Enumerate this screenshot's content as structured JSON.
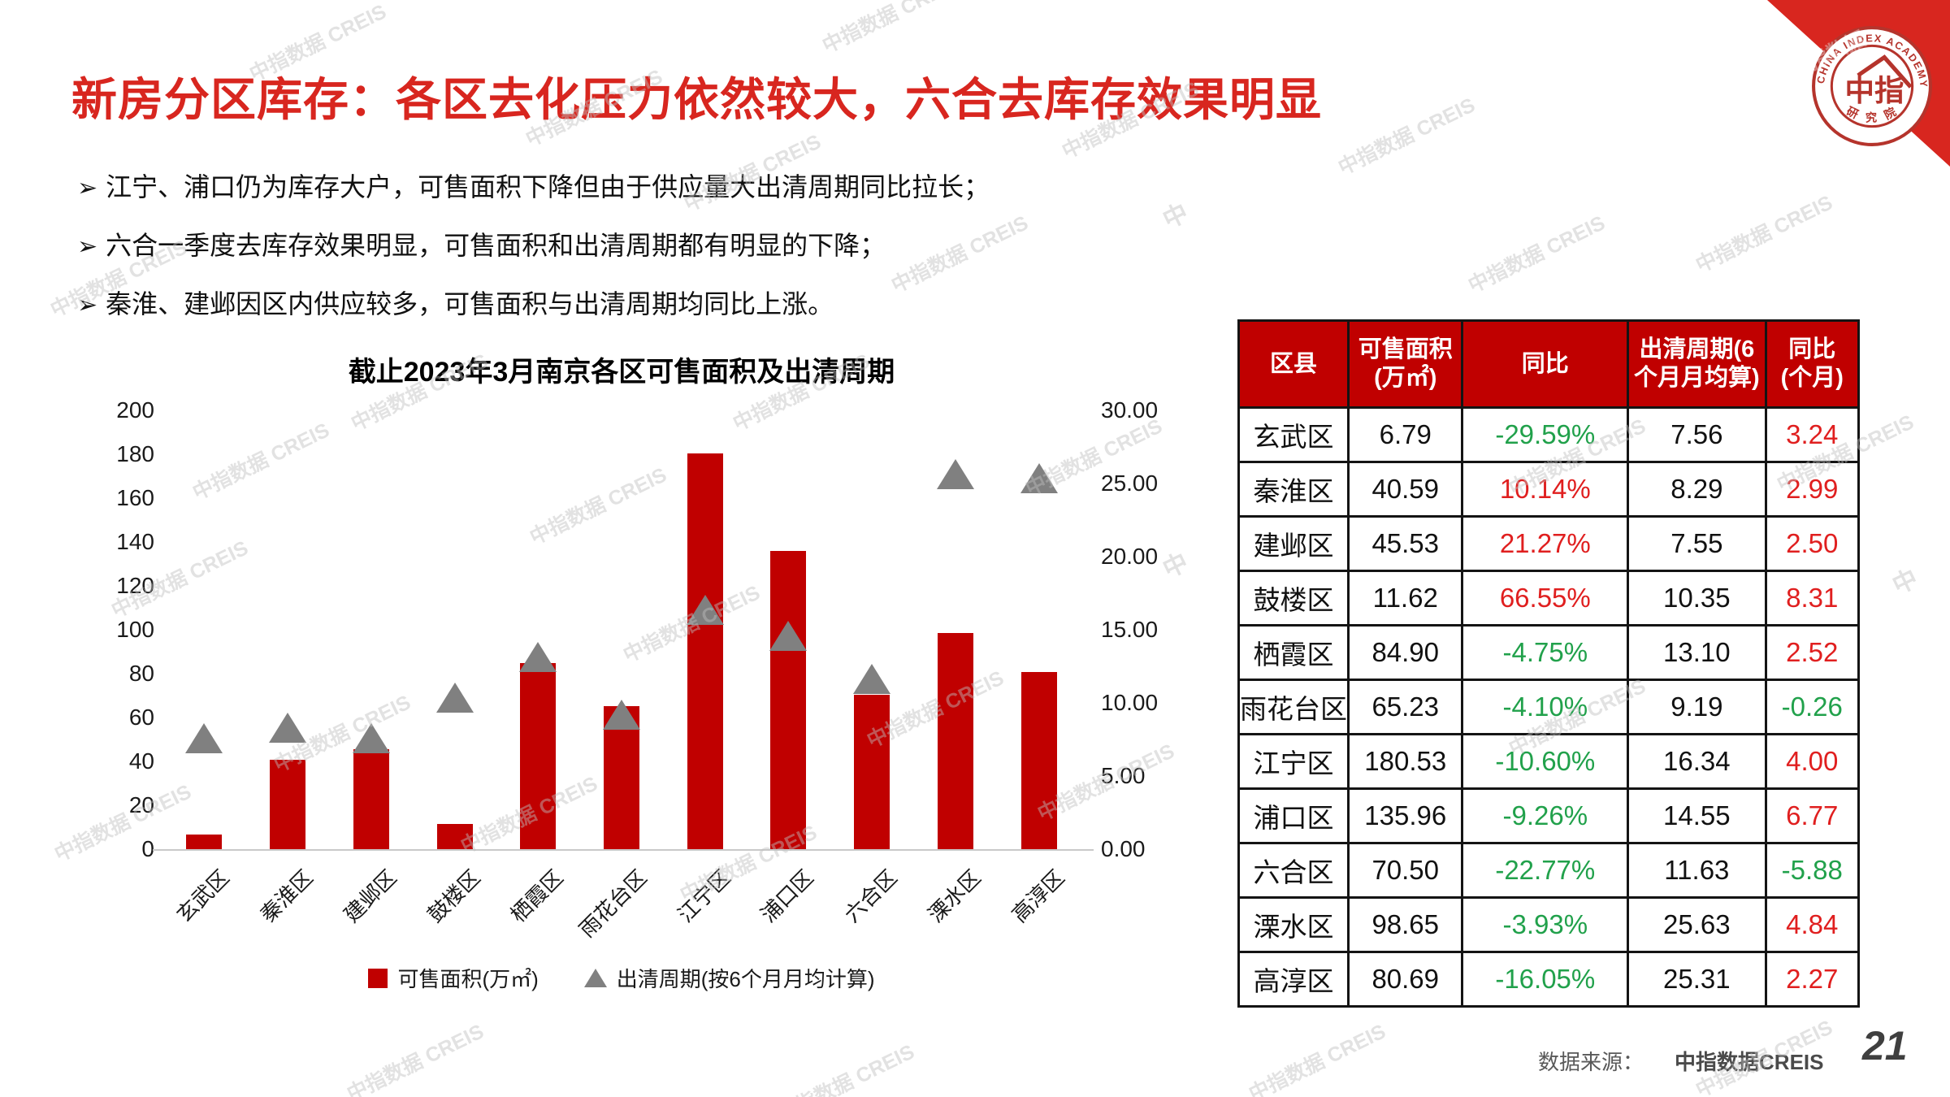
{
  "slide": {
    "title": "新房分区库存：各区去化压力依然较大，六合去库存效果明显",
    "bullets": [
      "江宁、浦口仍为库存大户，可售面积下降但由于供应量大出清周期同比拉长；",
      "六合一季度去库存效果明显，可售面积和出清周期都有明显的下降；",
      "秦淮、建邺因区内供应较多，可售面积与出清周期均同比上涨。"
    ],
    "bullet_marker": "➢",
    "watermark_line1": "中指数据",
    "watermark_line2": "CREIS",
    "watermark_short": "中",
    "logo": {
      "org_en": "CHINA INDEX ACADEMY",
      "org_center": "中指",
      "org_cn": "研 究 院"
    },
    "footer": {
      "source_label": "数据来源：",
      "source_value": "中指数据CREIS",
      "page_number": "21"
    }
  },
  "chart_data": {
    "type": "bar",
    "title": "截止2023年3月南京各区可售面积及出清周期",
    "categories": [
      "玄武区",
      "秦淮区",
      "建邺区",
      "鼓楼区",
      "栖霞区",
      "雨花台区",
      "江宁区",
      "浦口区",
      "六合区",
      "溧水区",
      "高淳区"
    ],
    "series": [
      {
        "name": "可售面积(万㎡)",
        "type": "bar",
        "axis": "left",
        "color": "#c00000",
        "values": [
          6.79,
          40.59,
          45.53,
          11.62,
          84.9,
          65.23,
          180.53,
          135.96,
          70.5,
          98.65,
          80.69
        ]
      },
      {
        "name": "出清周期(按6个月月均计算)",
        "type": "scatter-triangle",
        "axis": "right",
        "color": "#808080",
        "values": [
          7.56,
          8.29,
          7.55,
          10.35,
          13.1,
          9.19,
          16.34,
          14.55,
          11.63,
          25.63,
          25.31
        ]
      }
    ],
    "left_axis": {
      "min": 0,
      "max": 200,
      "ticks": [
        "0",
        "20",
        "40",
        "60",
        "80",
        "100",
        "120",
        "140",
        "160",
        "180",
        "200"
      ]
    },
    "right_axis": {
      "min": 0,
      "max": 30,
      "ticks": [
        "0.00",
        "5.00",
        "10.00",
        "15.00",
        "20.00",
        "25.00",
        "30.00"
      ]
    },
    "grid": false,
    "legend_position": "bottom"
  },
  "table": {
    "headers": [
      "区县",
      "可售面积\n(万㎡)",
      "同比",
      "出清周期(6\n个月月均算)",
      "同比\n(个月)"
    ],
    "rows": [
      {
        "district": "玄武区",
        "area": "6.79",
        "area_yoy": "-29.59%",
        "cycle": "7.56",
        "cycle_yoy": "3.24"
      },
      {
        "district": "秦淮区",
        "area": "40.59",
        "area_yoy": "10.14%",
        "cycle": "8.29",
        "cycle_yoy": "2.99"
      },
      {
        "district": "建邺区",
        "area": "45.53",
        "area_yoy": "21.27%",
        "cycle": "7.55",
        "cycle_yoy": "2.50"
      },
      {
        "district": "鼓楼区",
        "area": "11.62",
        "area_yoy": "66.55%",
        "cycle": "10.35",
        "cycle_yoy": "8.31"
      },
      {
        "district": "栖霞区",
        "area": "84.90",
        "area_yoy": "-4.75%",
        "cycle": "13.10",
        "cycle_yoy": "2.52"
      },
      {
        "district": "雨花台区",
        "area": "65.23",
        "area_yoy": "-4.10%",
        "cycle": "9.19",
        "cycle_yoy": "-0.26"
      },
      {
        "district": "江宁区",
        "area": "180.53",
        "area_yoy": "-10.60%",
        "cycle": "16.34",
        "cycle_yoy": "4.00"
      },
      {
        "district": "浦口区",
        "area": "135.96",
        "area_yoy": "-9.26%",
        "cycle": "14.55",
        "cycle_yoy": "6.77"
      },
      {
        "district": "六合区",
        "area": "70.50",
        "area_yoy": "-22.77%",
        "cycle": "11.63",
        "cycle_yoy": "-5.88"
      },
      {
        "district": "溧水区",
        "area": "98.65",
        "area_yoy": "-3.93%",
        "cycle": "25.63",
        "cycle_yoy": "4.84"
      },
      {
        "district": "高淳区",
        "area": "80.69",
        "area_yoy": "-16.05%",
        "cycle": "25.31",
        "cycle_yoy": "2.27"
      }
    ],
    "palette": {
      "positive": "#e01f1f",
      "negative": "#21a14b",
      "header_bg": "#c00000",
      "header_text": "#ffffff",
      "bar": "#c00000",
      "triangle": "#808080",
      "title_red": "#d8261f"
    }
  }
}
